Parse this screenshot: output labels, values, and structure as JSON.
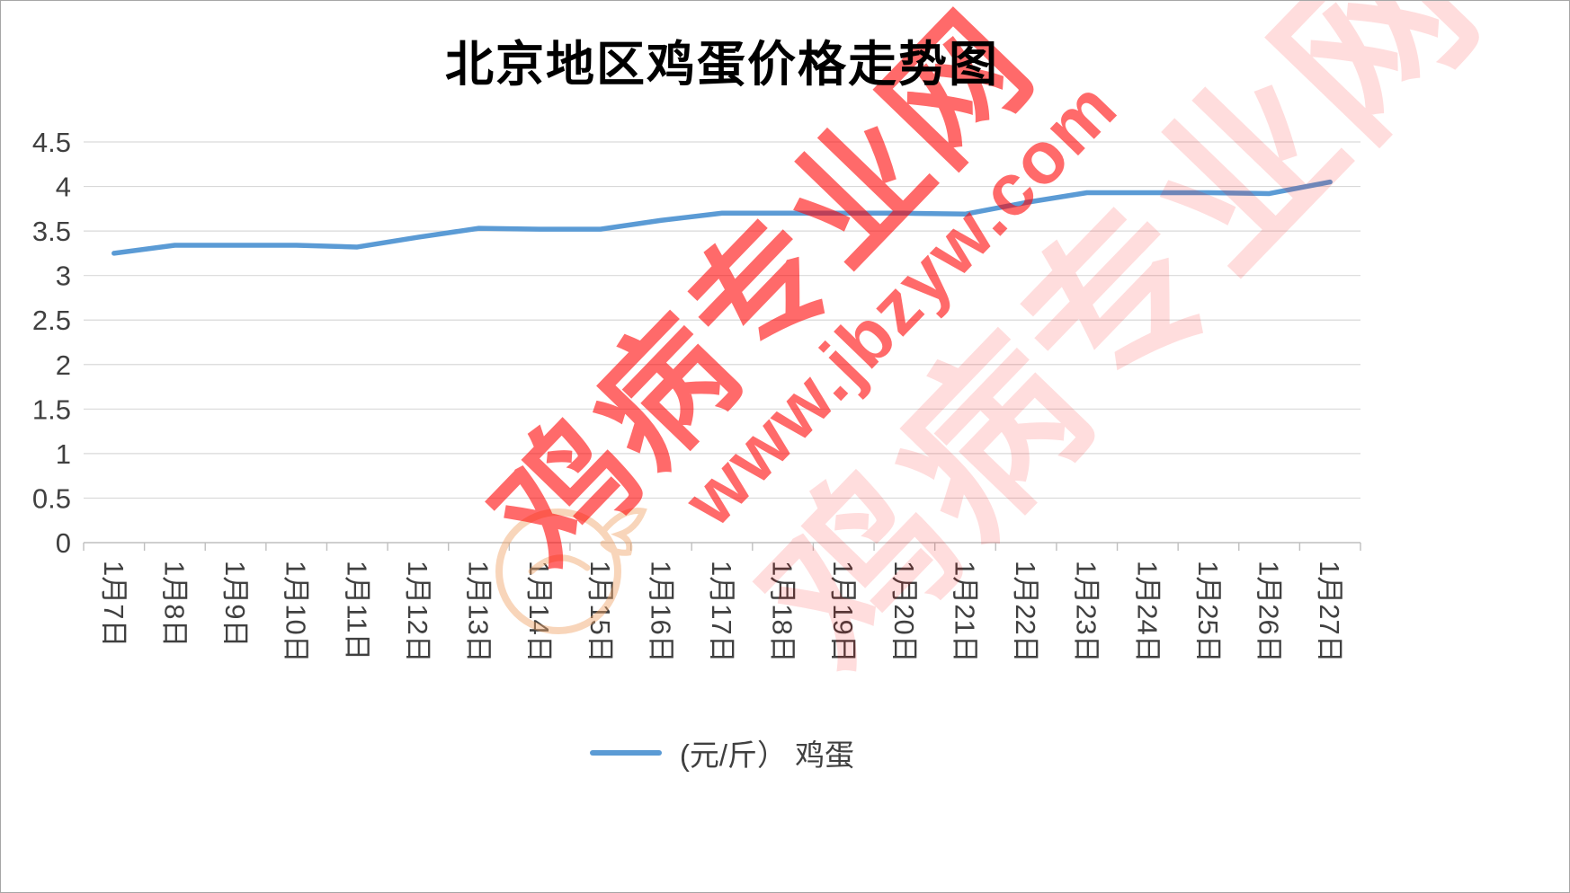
{
  "page": {
    "title": "北京地区鸡蛋价格走势图"
  },
  "legend": {
    "series_label": "(元/斤） 鸡蛋"
  },
  "watermark": {
    "text": "鸡病专业网",
    "url": "www.jbzyw.com"
  },
  "colors": {
    "line": "#5B9BD5",
    "grid": "#D9D9D9",
    "axis": "#BFBFBF",
    "label": "#404040",
    "title": "#000000",
    "watermark": "#FF0000",
    "logo": "#F0A468"
  },
  "chart_data": {
    "type": "line",
    "title": "北京地区鸡蛋价格走势图",
    "categories": [
      "1月7日",
      "1月8日",
      "1月9日",
      "1月10日",
      "1月11日",
      "1月12日",
      "1月13日",
      "1月14日",
      "1月15日",
      "1月16日",
      "1月17日",
      "1月18日",
      "1月19日",
      "1月20日",
      "1月21日",
      "1月22日",
      "1月23日",
      "1月24日",
      "1月25日",
      "1月26日",
      "1月27日"
    ],
    "series": [
      {
        "name": "(元/斤） 鸡蛋",
        "color": "#5B9BD5",
        "values": [
          3.25,
          3.34,
          3.34,
          3.34,
          3.32,
          3.43,
          3.53,
          3.52,
          3.52,
          3.62,
          3.7,
          3.7,
          3.7,
          3.7,
          3.69,
          3.82,
          3.93,
          3.93,
          3.93,
          3.92,
          4.05
        ]
      }
    ],
    "xlabel": "",
    "ylabel": "",
    "ylim": [
      0,
      4.5
    ],
    "ytick_step": 0.5,
    "grid": true,
    "x_label_rotation": 90,
    "legend_position": "bottom"
  }
}
